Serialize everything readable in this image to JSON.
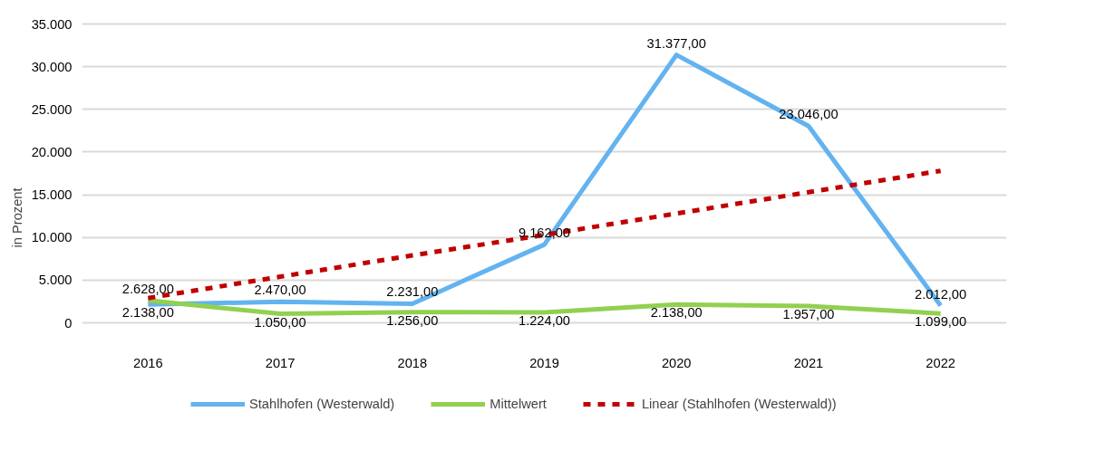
{
  "chart_data": {
    "type": "line",
    "ylabel": "in Prozent",
    "categories": [
      "2016",
      "2017",
      "2018",
      "2019",
      "2020",
      "2021",
      "2022"
    ],
    "series": [
      {
        "name": "Stahlhofen (Westerwald)",
        "color": "#63b3f0",
        "values": [
          2138,
          2470,
          2231,
          9162,
          31377,
          23046,
          2012
        ],
        "value_labels": [
          "2.138,00",
          "2.470,00",
          "2.231,00",
          "9.162,00",
          "31.377,00",
          "23.046,00",
          "2.012,00"
        ]
      },
      {
        "name": "Mittelwert",
        "color": "#92d050",
        "values": [
          2628,
          1050,
          1256,
          1224,
          2138,
          1957,
          1099
        ],
        "value_labels": [
          "2.628,00",
          "1.050,00",
          "1.256,00",
          "1.224,00",
          "2.138,00",
          "1.957,00",
          "1.099,00"
        ]
      },
      {
        "name": "Linear (Stahlhofen (Westerwald))",
        "color": "#c00000",
        "values": [
          2900,
          5400,
          7900,
          10300,
          12800,
          15300,
          17800
        ],
        "line_style": "dashed"
      }
    ],
    "ylim": [
      0,
      35000
    ],
    "yticks": [
      {
        "value": 0,
        "label": "0"
      },
      {
        "value": 5000,
        "label": "5.000"
      },
      {
        "value": 10000,
        "label": "10.000"
      },
      {
        "value": 15000,
        "label": "15.000"
      },
      {
        "value": 20000,
        "label": "20.000"
      },
      {
        "value": 25000,
        "label": "25.000"
      },
      {
        "value": 30000,
        "label": "30.000"
      },
      {
        "value": 35000,
        "label": "35.000"
      }
    ],
    "grid": "y",
    "legend": "bottom",
    "marker": "none",
    "line_style": "solid"
  }
}
